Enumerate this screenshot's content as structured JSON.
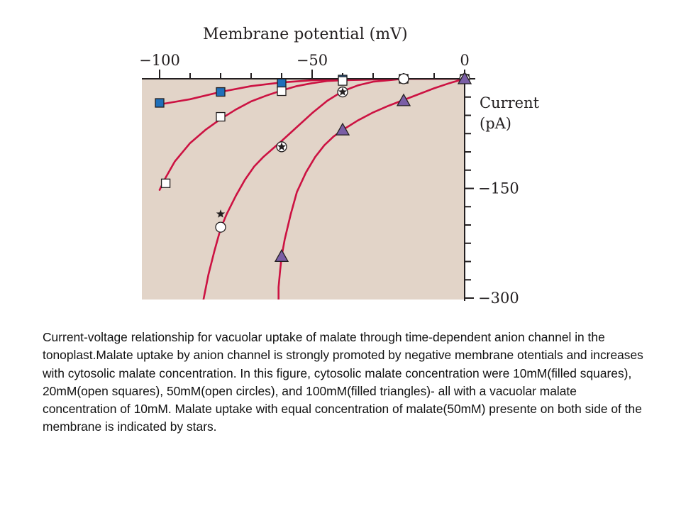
{
  "chart_data": {
    "type": "line",
    "title": "",
    "xlabel": "Membrane potential (mV)",
    "ylabel_lines": [
      "Current",
      "(pA)"
    ],
    "xlim": [
      -102,
      0
    ],
    "ylim": [
      -300,
      0
    ],
    "x_ticks": [
      -100,
      -50,
      0
    ],
    "x_tick_labels": [
      "−100",
      "−50",
      "0"
    ],
    "y_ticks": [
      -150,
      -300
    ],
    "y_tick_labels": [
      "−150",
      "−300"
    ],
    "background_color": "#e2d4c8",
    "curve_color": "#cc1242",
    "series": [
      {
        "marker": "filled-square",
        "color": "#1f6fba",
        "points": [
          [
            -100,
            -33
          ],
          [
            -80,
            -18
          ],
          [
            -60,
            -6
          ],
          [
            -40,
            -1
          ],
          [
            -20,
            0
          ],
          [
            0,
            0
          ]
        ],
        "curve": [
          [
            -100,
            -35
          ],
          [
            -90,
            -28
          ],
          [
            -80,
            -18
          ],
          [
            -70,
            -10
          ],
          [
            -60,
            -5
          ],
          [
            -50,
            -2
          ],
          [
            -40,
            -1
          ],
          [
            -20,
            0
          ],
          [
            0,
            0
          ]
        ]
      },
      {
        "marker": "open-square",
        "color": "#ffffff",
        "points": [
          [
            -98,
            -143
          ],
          [
            -80,
            -52
          ],
          [
            -60,
            -17
          ],
          [
            -40,
            -3
          ],
          [
            -20,
            0
          ],
          [
            0,
            0
          ]
        ],
        "curve": [
          [
            -100,
            -152
          ],
          [
            -98,
            -135
          ],
          [
            -95,
            -113
          ],
          [
            -90,
            -88
          ],
          [
            -85,
            -70
          ],
          [
            -80,
            -55
          ],
          [
            -75,
            -42
          ],
          [
            -70,
            -31
          ],
          [
            -65,
            -23
          ],
          [
            -60,
            -16
          ],
          [
            -55,
            -10
          ],
          [
            -50,
            -6
          ],
          [
            -45,
            -3
          ],
          [
            -40,
            -2
          ],
          [
            -30,
            -1
          ],
          [
            -20,
            0
          ],
          [
            0,
            0
          ]
        ]
      },
      {
        "marker": "open-circle",
        "color": "#ffffff",
        "points": [
          [
            -80,
            -203
          ],
          [
            -60,
            -93
          ],
          [
            -40,
            -18
          ],
          [
            -20,
            0
          ],
          [
            0,
            0
          ]
        ],
        "curve": [
          [
            -86,
            -310
          ],
          [
            -84,
            -268
          ],
          [
            -82,
            -235
          ],
          [
            -80,
            -205
          ],
          [
            -78,
            -185
          ],
          [
            -75,
            -160
          ],
          [
            -72,
            -138
          ],
          [
            -69,
            -120
          ],
          [
            -66,
            -107
          ],
          [
            -63,
            -96
          ],
          [
            -60,
            -85
          ],
          [
            -55,
            -66
          ],
          [
            -50,
            -47
          ],
          [
            -45,
            -30
          ],
          [
            -40,
            -17
          ],
          [
            -35,
            -9
          ],
          [
            -30,
            -4
          ],
          [
            -25,
            -2
          ],
          [
            -20,
            0
          ],
          [
            0,
            0
          ]
        ]
      },
      {
        "marker": "filled-triangle",
        "color": "#7a5ea6",
        "points": [
          [
            -60,
            -243
          ],
          [
            -40,
            -70
          ],
          [
            -20,
            -30
          ],
          [
            0,
            0
          ]
        ],
        "curve": [
          [
            -61,
            -310
          ],
          [
            -61,
            -285
          ],
          [
            -60.5,
            -262
          ],
          [
            -60,
            -243
          ],
          [
            -59,
            -220
          ],
          [
            -57,
            -185
          ],
          [
            -55,
            -155
          ],
          [
            -52,
            -128
          ],
          [
            -49,
            -107
          ],
          [
            -46,
            -91
          ],
          [
            -43,
            -79
          ],
          [
            -40,
            -70
          ],
          [
            -35,
            -57
          ],
          [
            -30,
            -46
          ],
          [
            -25,
            -37
          ],
          [
            -20,
            -29
          ],
          [
            -15,
            -21
          ],
          [
            -10,
            -13
          ],
          [
            -5,
            -6
          ],
          [
            0,
            0
          ]
        ]
      }
    ],
    "star_markers": [
      [
        -80,
        -185
      ],
      [
        -60,
        -93
      ],
      [
        -40,
        -18
      ]
    ]
  },
  "caption": "Current-voltage relationship for vacuolar uptake of malate through time-dependent anion channel in the tonoplast.Malate uptake by anion channel is strongly promoted by negative membrane otentials and increases with cytosolic malate concentration. In this figure, cytosolic malate concentration were 10mM(filled squares), 20mM(open squares), 50mM(open circles), and 100mM(filled triangles)- all with a vacuolar malate concentration of 10mM. Malate uptake with equal concentration of malate(50mM) presente on both side of the membrane is indicated by stars."
}
